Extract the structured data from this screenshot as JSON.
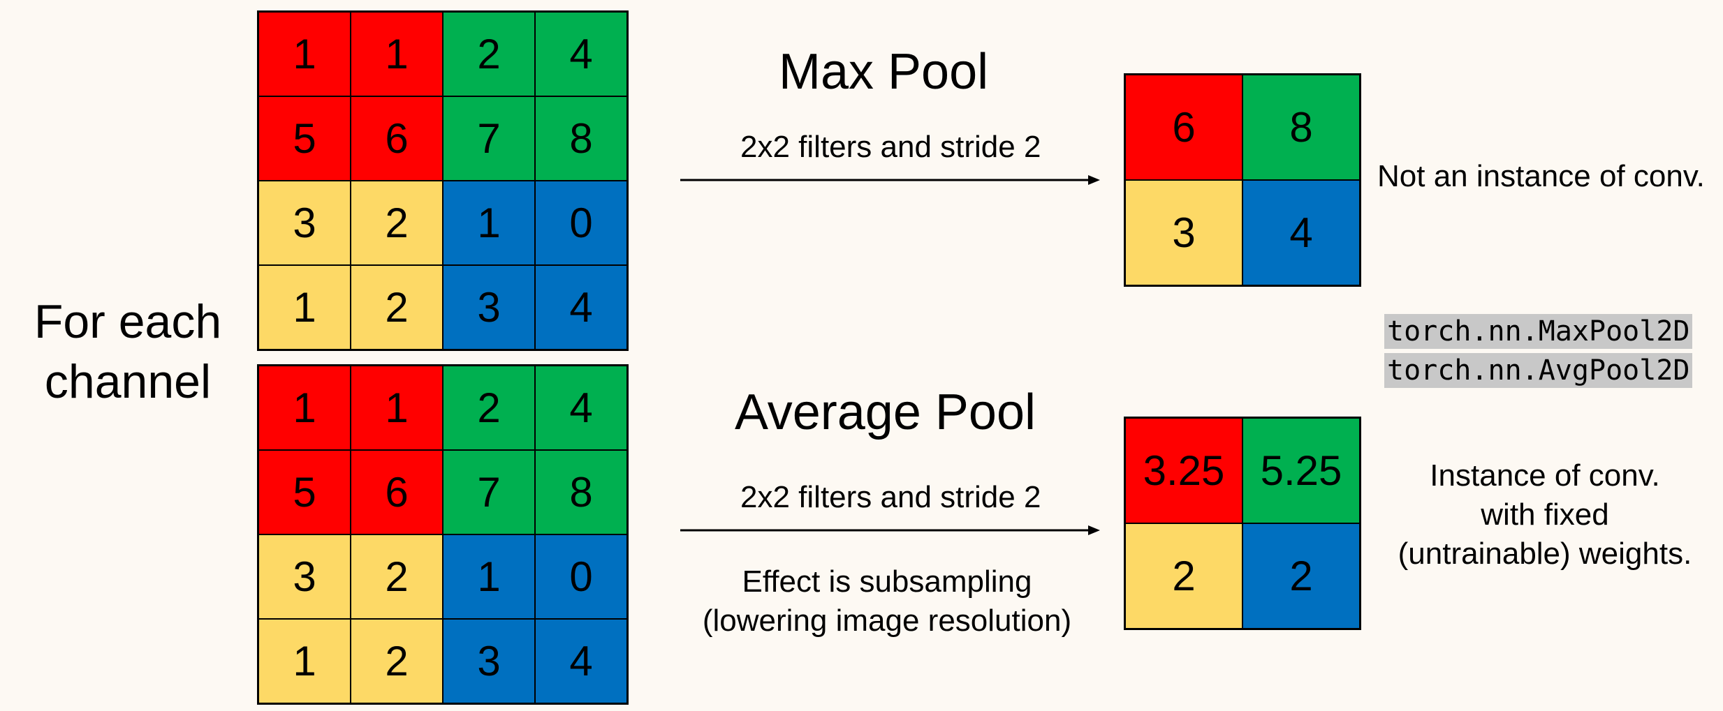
{
  "colors": {
    "red": "#ff0000",
    "green": "#00b050",
    "yellow": "#fdd966",
    "blue": "#0070c0"
  },
  "side_label_line1": "For each",
  "side_label_line2": "channel",
  "input_grid": [
    [
      {
        "v": "1",
        "c": "red"
      },
      {
        "v": "1",
        "c": "red"
      },
      {
        "v": "2",
        "c": "green"
      },
      {
        "v": "4",
        "c": "green"
      }
    ],
    [
      {
        "v": "5",
        "c": "red"
      },
      {
        "v": "6",
        "c": "red"
      },
      {
        "v": "7",
        "c": "green"
      },
      {
        "v": "8",
        "c": "green"
      }
    ],
    [
      {
        "v": "3",
        "c": "yellow"
      },
      {
        "v": "2",
        "c": "yellow"
      },
      {
        "v": "1",
        "c": "blue"
      },
      {
        "v": "0",
        "c": "blue"
      }
    ],
    [
      {
        "v": "1",
        "c": "yellow"
      },
      {
        "v": "2",
        "c": "yellow"
      },
      {
        "v": "3",
        "c": "blue"
      },
      {
        "v": "4",
        "c": "blue"
      }
    ]
  ],
  "max_pool": {
    "title": "Max Pool",
    "subtitle": "2x2 filters and stride 2",
    "output": [
      [
        {
          "v": "6",
          "c": "red"
        },
        {
          "v": "8",
          "c": "green"
        }
      ],
      [
        {
          "v": "3",
          "c": "yellow"
        },
        {
          "v": "4",
          "c": "blue"
        }
      ]
    ],
    "note": "Not an instance of conv."
  },
  "avg_pool": {
    "title": "Average Pool",
    "subtitle": "2x2 filters and stride 2",
    "effect_line1": "Effect is subsampling",
    "effect_line2": "(lowering image resolution)",
    "output": [
      [
        {
          "v": "3.25",
          "c": "red"
        },
        {
          "v": "5.25",
          "c": "green"
        }
      ],
      [
        {
          "v": "2",
          "c": "yellow"
        },
        {
          "v": "2",
          "c": "blue"
        }
      ]
    ],
    "note_line1": "Instance of conv.",
    "note_line2": "with fixed",
    "note_line3": "(untrainable) weights."
  },
  "code": {
    "line1": "torch.nn.MaxPool2D",
    "line2": "torch.nn.AvgPool2D"
  }
}
